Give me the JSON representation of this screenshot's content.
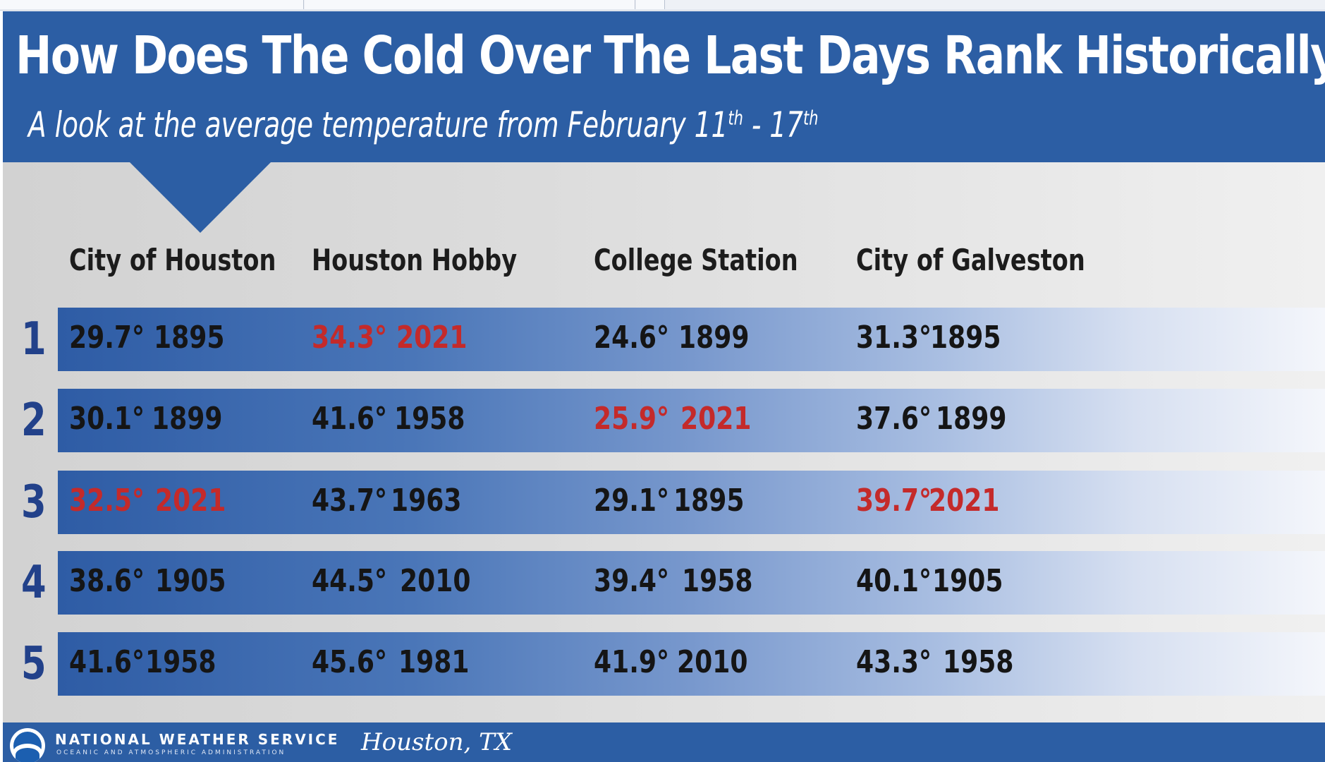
{
  "slide": {
    "title": "How Does The Cold Over The Last Days Rank Historically?",
    "subtitle_main": "A look at the average temperature from February 11",
    "subtitle_sup1": "th",
    "subtitle_dash": " - 17",
    "subtitle_sup2": "th"
  },
  "columns": [
    "City of Houston",
    "Houston Hobby",
    "College Station",
    "City of Galveston"
  ],
  "ranks": [
    "1",
    "2",
    "3",
    "4",
    "5"
  ],
  "rows": [
    {
      "city_of_houston": {
        "temp": "29.7°",
        "year": "1895"
      },
      "houston_hobby": {
        "temp": "34.3°",
        "year": "2021"
      },
      "college_station": {
        "temp": "24.6°",
        "year": "1899"
      },
      "city_of_galveston": {
        "temp": "31.3°",
        "year": "1895"
      }
    },
    {
      "city_of_houston": {
        "temp": "30.1°",
        "year": "1899"
      },
      "houston_hobby": {
        "temp": "41.6°",
        "year": "1958"
      },
      "college_station": {
        "temp": "25.9°",
        "year": "2021"
      },
      "city_of_galveston": {
        "temp": "37.6°",
        "year": "1899"
      }
    },
    {
      "city_of_houston": {
        "temp": "32.5°",
        "year": "2021"
      },
      "houston_hobby": {
        "temp": "43.7°",
        "year": "1963"
      },
      "college_station": {
        "temp": "29.1°",
        "year": "1895"
      },
      "city_of_galveston": {
        "temp": "39.7°",
        "year": "2021"
      }
    },
    {
      "city_of_houston": {
        "temp": "38.6°",
        "year": "1905"
      },
      "houston_hobby": {
        "temp": "44.5°",
        "year": "2010"
      },
      "college_station": {
        "temp": "39.4°",
        "year": "1958"
      },
      "city_of_galveston": {
        "temp": "40.1°",
        "year": "1905"
      }
    },
    {
      "city_of_houston": {
        "temp": "41.6°",
        "year": "1958"
      },
      "houston_hobby": {
        "temp": "45.6°",
        "year": "1981"
      },
      "college_station": {
        "temp": "41.9°",
        "year": "2010"
      },
      "city_of_galveston": {
        "temp": "43.3°",
        "year": "1958"
      }
    }
  ],
  "highlight_year": "2021",
  "colors": {
    "header_blue": "#2c5ea4",
    "highlight_red": "#c42a2a",
    "rank_blue": "#22418a"
  },
  "footer": {
    "agency": "NATIONAL WEATHER SERVICE",
    "agency_sub": "OCEANIC AND ATMOSPHERIC ADMINISTRATION",
    "office": "Houston, TX"
  }
}
